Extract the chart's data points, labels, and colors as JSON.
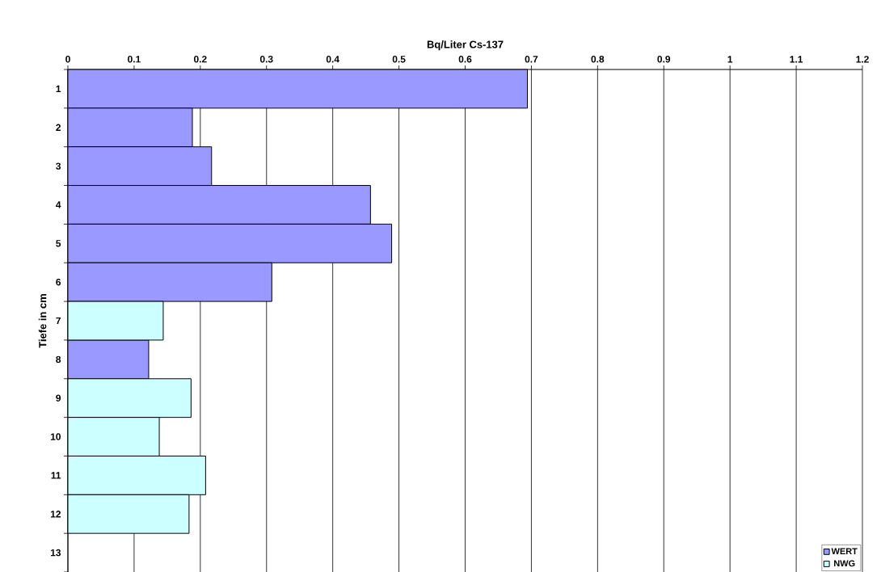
{
  "chart_data": {
    "type": "bar",
    "orientation": "horizontal",
    "xlabel": "Bq/Liter Cs-137",
    "ylabel": "Tiefe in cm",
    "categories": [
      "1",
      "2",
      "3",
      "4",
      "5",
      "6",
      "7",
      "8",
      "9",
      "10",
      "11",
      "12",
      "13"
    ],
    "series": [
      {
        "name": "WERT",
        "color": "#9999ff",
        "values": [
          0.694,
          0.188,
          0.217,
          0.457,
          0.489,
          0.308,
          null,
          0.122,
          null,
          null,
          null,
          null,
          null
        ]
      },
      {
        "name": "NWG",
        "color": "#ccffff",
        "values": [
          null,
          null,
          null,
          null,
          null,
          null,
          0.144,
          null,
          0.186,
          0.138,
          0.208,
          0.183,
          null
        ]
      }
    ],
    "xlim": [
      0,
      1.2
    ],
    "xticks": [
      0,
      0.1,
      0.2,
      0.3,
      0.4,
      0.5,
      0.6,
      0.7,
      0.8,
      0.9,
      1,
      1.1,
      1.2
    ],
    "grid": "x",
    "legend": "bottom right"
  }
}
